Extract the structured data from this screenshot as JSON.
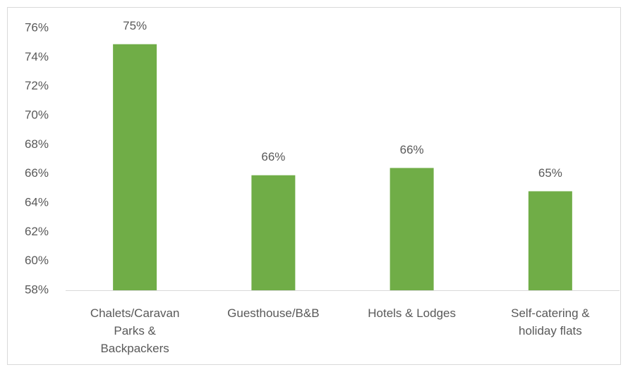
{
  "chart_data": {
    "type": "bar",
    "categories": [
      "Chalets/Caravan Parks & Backpackers",
      "Guesthouse/B&B",
      "Hotels & Lodges",
      "Self-catering & holiday flats"
    ],
    "values": [
      74.9,
      65.9,
      66.4,
      64.8
    ],
    "value_labels": [
      "75%",
      "66%",
      "66%",
      "65%"
    ],
    "color": "#70ad47",
    "ylim": [
      58,
      76
    ],
    "yticks": [
      {
        "value": 58,
        "label": "58%"
      },
      {
        "value": 60,
        "label": "60%"
      },
      {
        "value": 62,
        "label": "62%"
      },
      {
        "value": 64,
        "label": "64%"
      },
      {
        "value": 66,
        "label": "66%"
      },
      {
        "value": 68,
        "label": "68%"
      },
      {
        "value": 70,
        "label": "70%"
      },
      {
        "value": 72,
        "label": "72%"
      },
      {
        "value": 74,
        "label": "74%"
      },
      {
        "value": 76,
        "label": "76%"
      }
    ],
    "grid": false
  }
}
